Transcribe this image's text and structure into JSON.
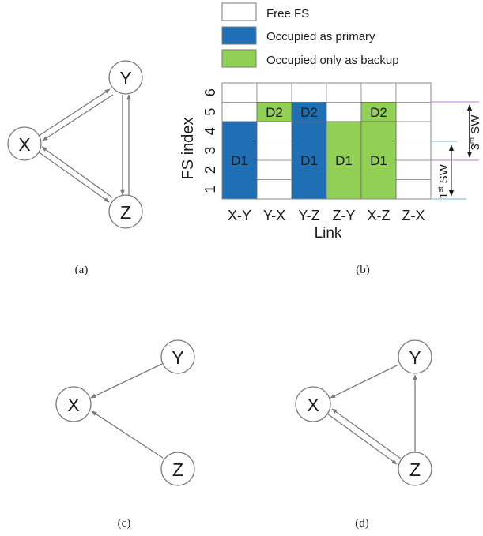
{
  "colors": {
    "primary": "#1f6fb5",
    "backup": "#92cf55",
    "line": "#7a7a7a",
    "node_stroke": "#7a7a7a",
    "text": "#1a1a1a"
  },
  "panel_a": {
    "caption": "(a)",
    "nodes": {
      "x": "X",
      "y": "Y",
      "z": "Z"
    }
  },
  "panel_b": {
    "caption": "(b)",
    "legend": [
      {
        "label": "Free FS",
        "color": "#ffffff"
      },
      {
        "label": "Occupied as primary",
        "color": "#1f6fb5"
      },
      {
        "label": "Occupied only as backup",
        "color": "#92cf55"
      }
    ],
    "y_label": "FS index",
    "x_label": "Link",
    "fs_indices": [
      "1",
      "2",
      "3",
      "4",
      "5",
      "6"
    ],
    "links": [
      "X-Y",
      "Y-X",
      "Y-Z",
      "Z-Y",
      "X-Z",
      "Z-X"
    ],
    "occupancy": [
      {
        "link": "X-Y",
        "demand": "D1",
        "fs_from": 1,
        "fs_to": 4,
        "type": "primary"
      },
      {
        "link": "Y-X",
        "demand": "D2",
        "fs_from": 5,
        "fs_to": 5,
        "type": "backup"
      },
      {
        "link": "Y-Z",
        "demand": "D1",
        "fs_from": 1,
        "fs_to": 4,
        "type": "primary"
      },
      {
        "link": "Y-Z",
        "demand": "D2",
        "fs_from": 5,
        "fs_to": 5,
        "type": "primary"
      },
      {
        "link": "Z-Y",
        "demand": "D1",
        "fs_from": 1,
        "fs_to": 4,
        "type": "backup"
      },
      {
        "link": "X-Z",
        "demand": "D1",
        "fs_from": 1,
        "fs_to": 4,
        "type": "backup"
      },
      {
        "link": "X-Z",
        "demand": "D2",
        "fs_from": 5,
        "fs_to": 5,
        "type": "backup"
      }
    ],
    "sw1": {
      "ord": "1",
      "sup": "st",
      "label": "SW"
    },
    "sw3": {
      "ord": "3",
      "sup": "rd",
      "label": "SW"
    }
  },
  "panel_c": {
    "caption": "(c)",
    "nodes": {
      "x": "X",
      "y": "Y",
      "z": "Z"
    }
  },
  "panel_d": {
    "caption": "(d)",
    "nodes": {
      "x": "X",
      "y": "Y",
      "z": "Z"
    }
  }
}
